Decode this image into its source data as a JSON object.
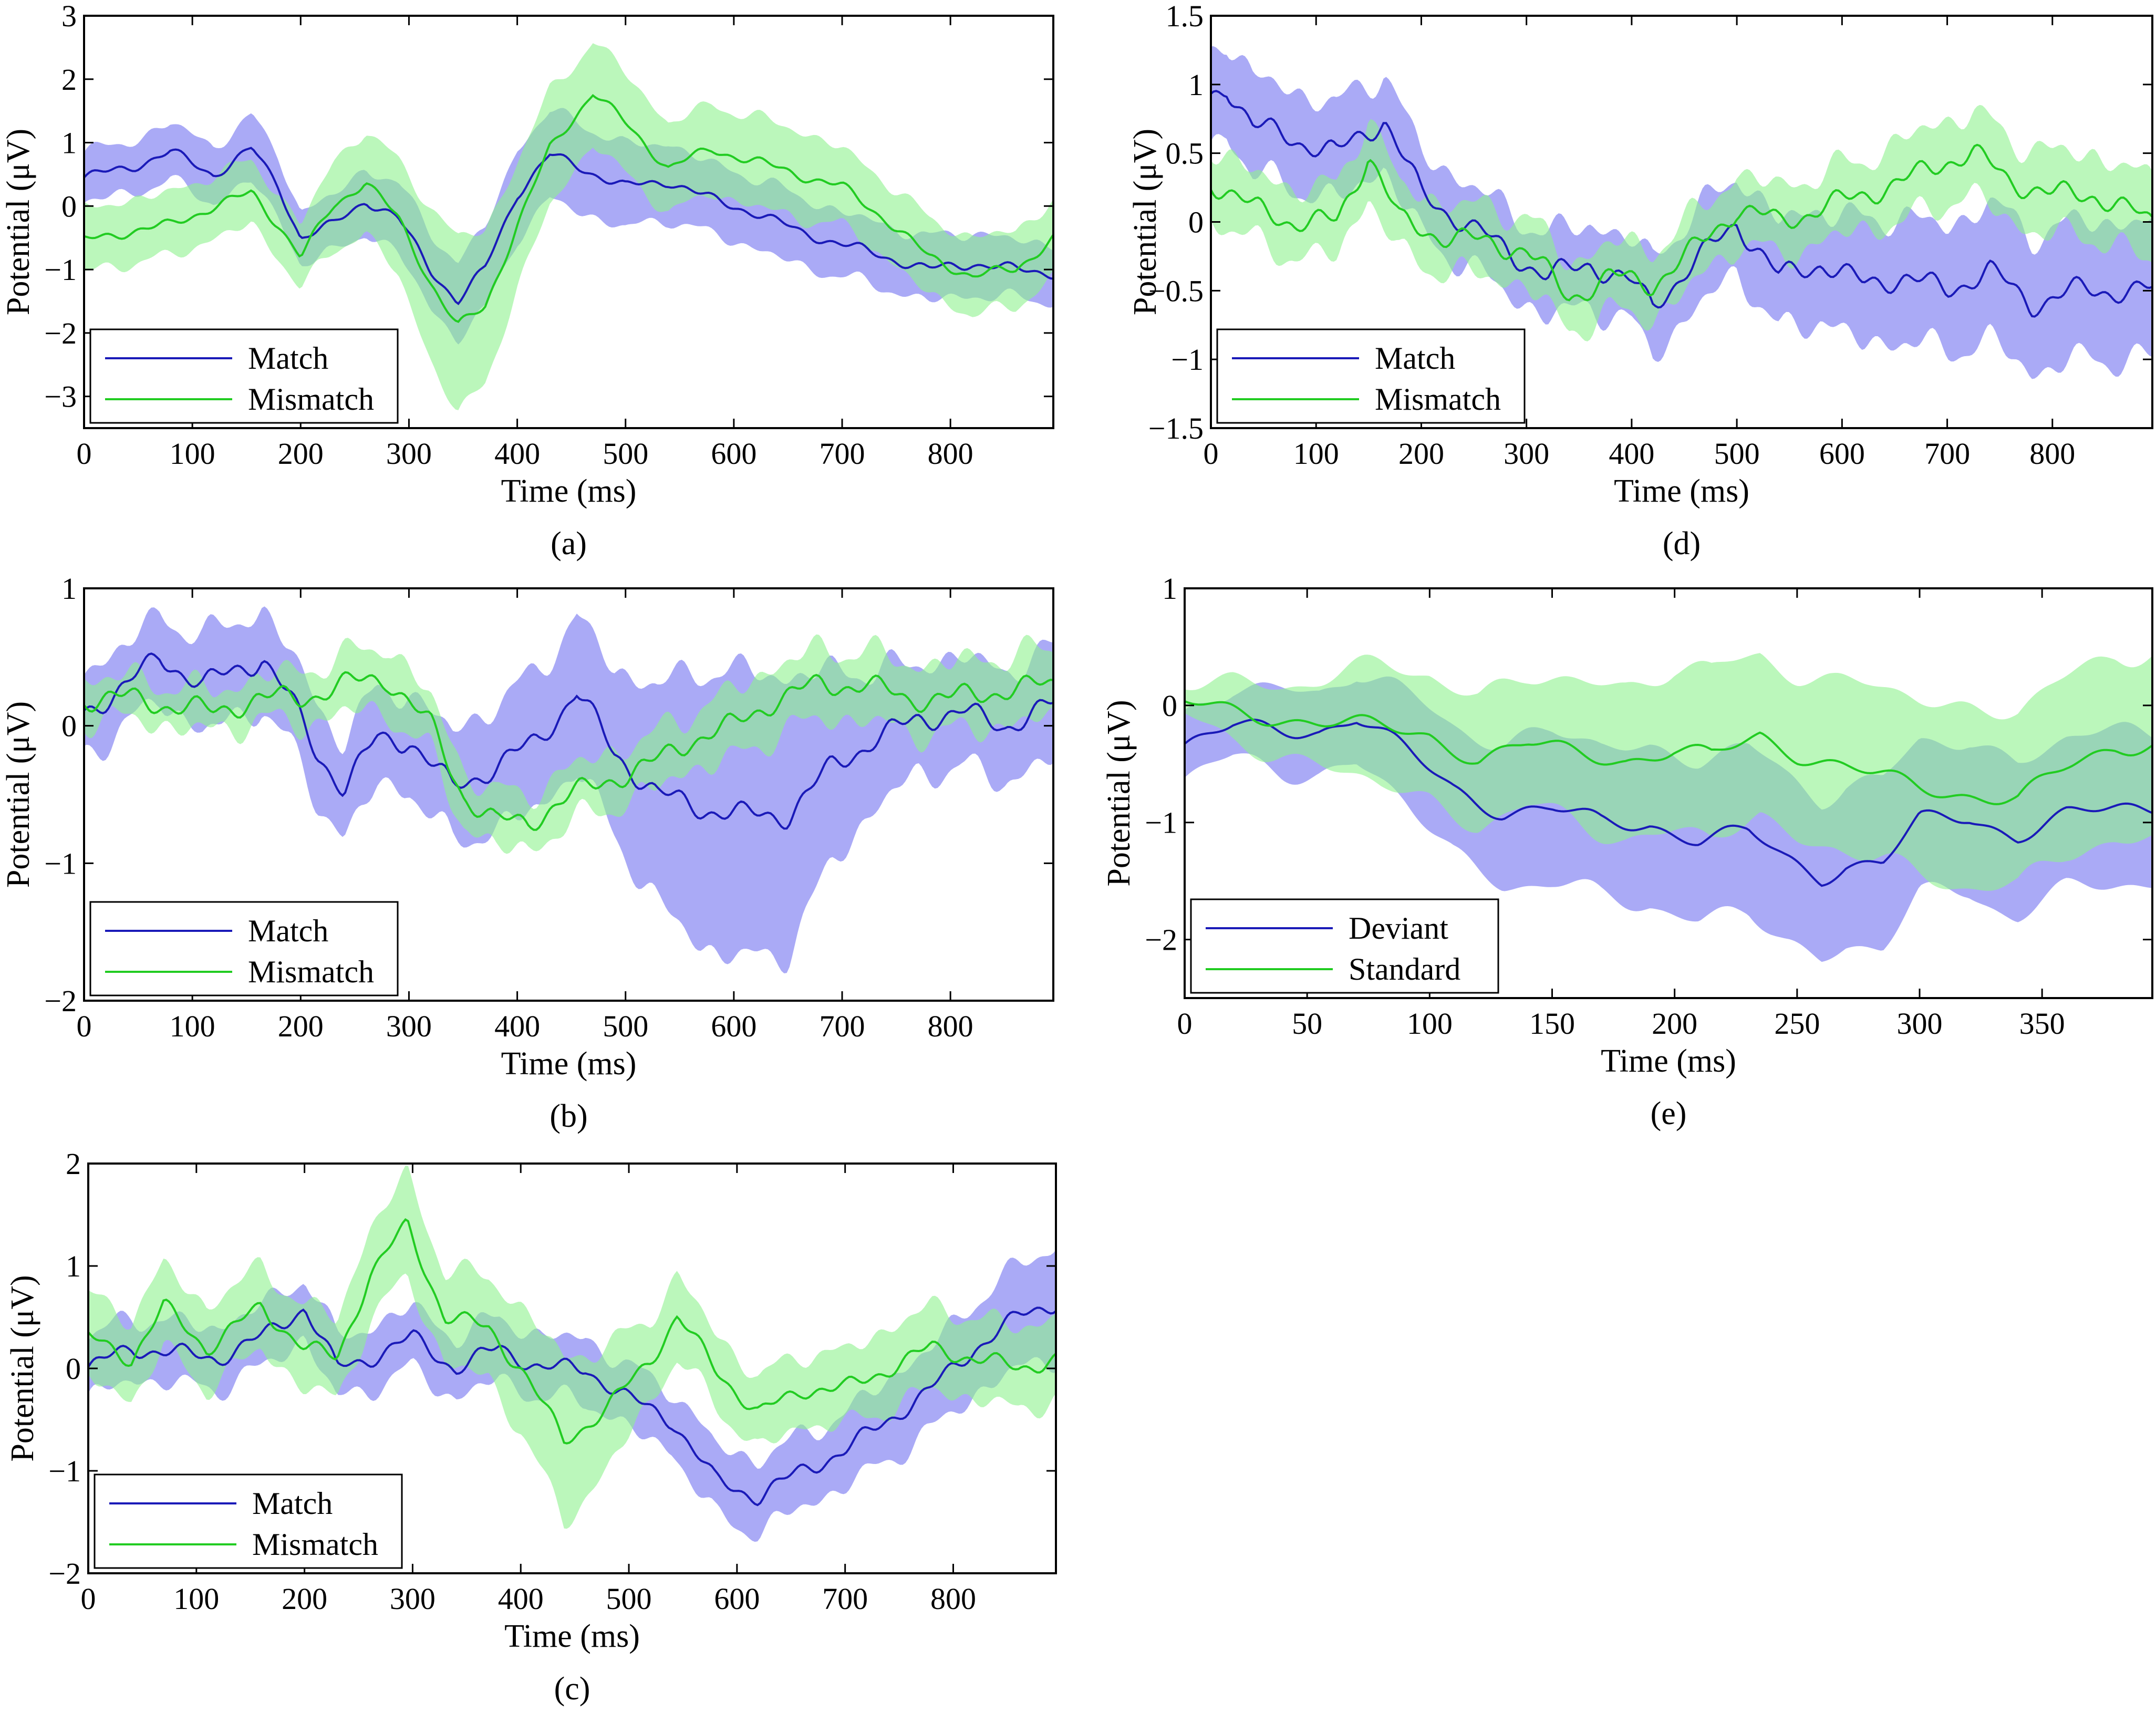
{
  "figure": {
    "colors": {
      "match_line": "#1a1ab8",
      "match_band": "#9b9bf5",
      "mismatch_line": "#22cc22",
      "mismatch_band": "#8df28d",
      "overlap_band": "#5aa89a"
    }
  },
  "chart_data": [
    {
      "id": "a",
      "type": "line",
      "panel_label": "(a)",
      "xlabel": "Time (ms)",
      "ylabel": "Potential (μV)",
      "xlim": [
        0,
        895
      ],
      "ylim": [
        -3.5,
        3
      ],
      "xticks": [
        0,
        100,
        200,
        300,
        400,
        500,
        600,
        700,
        800
      ],
      "yticks": [
        -3,
        -2,
        -1,
        0,
        1,
        2,
        3
      ],
      "legend_position": "bottom-left",
      "series": [
        {
          "name": "Match",
          "color": "#1a1ab8",
          "band": "#9b9bf5",
          "x": [
            0,
            40,
            80,
            120,
            155,
            180,
            200,
            230,
            260,
            290,
            320,
            345,
            370,
            400,
            430,
            460,
            500,
            540,
            580,
            620,
            660,
            700,
            740,
            780,
            820,
            860,
            895
          ],
          "y": [
            0.45,
            0.6,
            0.85,
            0.5,
            0.9,
            0.3,
            -0.5,
            -0.3,
            0.1,
            -0.2,
            -1.0,
            -1.5,
            -1.0,
            0.2,
            0.8,
            0.6,
            0.3,
            0.4,
            0.1,
            -0.1,
            -0.4,
            -0.6,
            -0.8,
            -1.0,
            -0.9,
            -1.0,
            -1.05
          ],
          "err": [
            0.4,
            0.4,
            0.45,
            0.45,
            0.5,
            0.5,
            0.4,
            0.45,
            0.5,
            0.55,
            0.6,
            0.6,
            0.65,
            0.7,
            0.7,
            0.7,
            0.65,
            0.6,
            0.55,
            0.55,
            0.55,
            0.5,
            0.5,
            0.5,
            0.5,
            0.45,
            0.45
          ]
        },
        {
          "name": "Mismatch",
          "color": "#22cc22",
          "band": "#8df28d",
          "x": [
            0,
            40,
            80,
            120,
            155,
            180,
            200,
            230,
            260,
            290,
            320,
            345,
            370,
            400,
            430,
            470,
            500,
            540,
            580,
            620,
            660,
            700,
            740,
            780,
            820,
            860,
            895
          ],
          "y": [
            -0.55,
            -0.4,
            -0.3,
            0.0,
            0.2,
            -0.3,
            -0.8,
            0.0,
            0.4,
            -0.2,
            -1.2,
            -1.9,
            -1.6,
            -0.3,
            0.9,
            1.8,
            1.3,
            0.6,
            0.9,
            0.7,
            0.5,
            0.3,
            -0.2,
            -0.8,
            -1.1,
            -1.0,
            -0.5
          ],
          "err": [
            0.5,
            0.5,
            0.5,
            0.5,
            0.5,
            0.5,
            0.5,
            0.7,
            0.8,
            0.9,
            1.2,
            1.4,
            1.2,
            1.0,
            0.9,
            0.8,
            0.8,
            0.7,
            0.7,
            0.7,
            0.7,
            0.6,
            0.6,
            0.6,
            0.6,
            0.6,
            0.6
          ]
        }
      ]
    },
    {
      "id": "b",
      "type": "line",
      "panel_label": "(b)",
      "xlabel": "Time (ms)",
      "ylabel": "Potential (μV)",
      "xlim": [
        0,
        895
      ],
      "ylim": [
        -2,
        1
      ],
      "xticks": [
        0,
        100,
        200,
        300,
        400,
        500,
        600,
        700,
        800
      ],
      "yticks": [
        -2,
        -1,
        0,
        1
      ],
      "legend_position": "bottom-left",
      "series": [
        {
          "name": "Match",
          "color": "#1a1ab8",
          "band": "#9b9bf5",
          "x": [
            0,
            40,
            70,
            110,
            140,
            165,
            190,
            215,
            240,
            270,
            300,
            340,
            380,
            420,
            455,
            490,
            530,
            570,
            610,
            650,
            690,
            730,
            770,
            810,
            850,
            895
          ],
          "y": [
            0.1,
            0.3,
            0.5,
            0.3,
            0.4,
            0.5,
            0.2,
            -0.2,
            -0.45,
            -0.1,
            -0.1,
            -0.45,
            -0.3,
            -0.1,
            0.25,
            -0.2,
            -0.5,
            -0.6,
            -0.65,
            -0.65,
            -0.3,
            -0.1,
            0.05,
            0.1,
            0.0,
            0.15
          ],
          "err": [
            0.3,
            0.3,
            0.3,
            0.35,
            0.35,
            0.35,
            0.35,
            0.35,
            0.35,
            0.35,
            0.35,
            0.4,
            0.45,
            0.5,
            0.55,
            0.6,
            0.8,
            1.0,
            1.05,
            1.0,
            0.7,
            0.5,
            0.4,
            0.4,
            0.4,
            0.4
          ]
        },
        {
          "name": "Mismatch",
          "color": "#22cc22",
          "band": "#8df28d",
          "x": [
            0,
            40,
            80,
            120,
            160,
            200,
            240,
            280,
            320,
            350,
            380,
            410,
            440,
            480,
            520,
            560,
            600,
            640,
            680,
            720,
            760,
            800,
            840,
            895
          ],
          "y": [
            0.2,
            0.2,
            0.15,
            0.1,
            0.2,
            0.2,
            0.3,
            0.35,
            0.0,
            -0.5,
            -0.7,
            -0.7,
            -0.55,
            -0.4,
            -0.3,
            -0.1,
            0.0,
            0.2,
            0.3,
            0.3,
            0.2,
            0.2,
            0.25,
            0.3
          ],
          "err": [
            0.15,
            0.15,
            0.15,
            0.15,
            0.15,
            0.2,
            0.2,
            0.25,
            0.2,
            0.2,
            0.2,
            0.2,
            0.2,
            0.2,
            0.2,
            0.2,
            0.25,
            0.25,
            0.25,
            0.25,
            0.25,
            0.25,
            0.25,
            0.25
          ]
        }
      ]
    },
    {
      "id": "c",
      "type": "line",
      "panel_label": "(c)",
      "xlabel": "Time (ms)",
      "ylabel": "Potential (μV)",
      "xlim": [
        0,
        895
      ],
      "ylim": [
        -2,
        2
      ],
      "xticks": [
        0,
        100,
        200,
        300,
        400,
        500,
        600,
        700,
        800
      ],
      "yticks": [
        -2,
        -1,
        0,
        1,
        2
      ],
      "legend_position": "bottom-left",
      "series": [
        {
          "name": "Match",
          "color": "#1a1ab8",
          "band": "#9b9bf5",
          "x": [
            0,
            40,
            80,
            120,
            160,
            200,
            230,
            260,
            300,
            340,
            380,
            420,
            460,
            500,
            540,
            580,
            620,
            660,
            700,
            740,
            780,
            820,
            860,
            895
          ],
          "y": [
            0.0,
            0.2,
            0.15,
            0.1,
            0.3,
            0.6,
            0.0,
            0.1,
            0.3,
            0.0,
            0.2,
            0.0,
            0.0,
            -0.3,
            -0.5,
            -1.1,
            -1.25,
            -1.0,
            -0.8,
            -0.5,
            -0.2,
            0.2,
            0.5,
            0.65
          ],
          "err": [
            0.3,
            0.3,
            0.3,
            0.3,
            0.3,
            0.3,
            0.3,
            0.3,
            0.3,
            0.3,
            0.3,
            0.3,
            0.3,
            0.3,
            0.3,
            0.35,
            0.35,
            0.35,
            0.35,
            0.4,
            0.4,
            0.45,
            0.5,
            0.55
          ]
        },
        {
          "name": "Mismatch",
          "color": "#22cc22",
          "band": "#8df28d",
          "x": [
            0,
            40,
            70,
            110,
            160,
            200,
            230,
            260,
            295,
            330,
            370,
            400,
            440,
            480,
            520,
            545,
            580,
            620,
            660,
            700,
            740,
            780,
            820,
            860,
            895
          ],
          "y": [
            0.3,
            0.1,
            0.6,
            0.2,
            0.6,
            0.2,
            0.1,
            0.9,
            1.4,
            0.5,
            0.4,
            0.0,
            -0.7,
            -0.4,
            0.1,
            0.5,
            0.0,
            -0.45,
            -0.2,
            -0.2,
            0.0,
            0.2,
            0.1,
            0.0,
            0.1
          ],
          "err": [
            0.4,
            0.4,
            0.4,
            0.4,
            0.4,
            0.4,
            0.4,
            0.45,
            0.5,
            0.45,
            0.5,
            0.6,
            0.8,
            0.6,
            0.4,
            0.4,
            0.35,
            0.35,
            0.35,
            0.35,
            0.4,
            0.4,
            0.4,
            0.4,
            0.4
          ]
        }
      ]
    },
    {
      "id": "d",
      "type": "line",
      "panel_label": "(d)",
      "xlabel": "Time (ms)",
      "ylabel": "Potential (μV)",
      "xlim": [
        0,
        895
      ],
      "ylim": [
        -1.5,
        1.5
      ],
      "xticks": [
        0,
        100,
        200,
        300,
        400,
        500,
        600,
        700,
        800
      ],
      "yticks": [
        -1.5,
        -1,
        -0.5,
        0,
        0.5,
        1,
        1.5
      ],
      "legend_position": "bottom-left",
      "series": [
        {
          "name": "Match",
          "color": "#1a1ab8",
          "band": "#9b9bf5",
          "x": [
            0,
            15,
            40,
            80,
            120,
            165,
            200,
            240,
            280,
            320,
            360,
            400,
            420,
            460,
            500,
            540,
            580,
            620,
            660,
            700,
            740,
            780,
            820,
            860,
            895
          ],
          "y": [
            0.9,
            1.0,
            0.7,
            0.6,
            0.5,
            0.75,
            0.2,
            0.0,
            -0.2,
            -0.4,
            -0.3,
            -0.45,
            -0.6,
            -0.3,
            0.0,
            -0.4,
            -0.3,
            -0.45,
            -0.4,
            -0.5,
            -0.35,
            -0.6,
            -0.5,
            -0.5,
            -0.5
          ],
          "err": [
            0.35,
            0.35,
            0.35,
            0.35,
            0.35,
            0.35,
            0.3,
            0.3,
            0.3,
            0.3,
            0.3,
            0.3,
            0.35,
            0.35,
            0.35,
            0.4,
            0.4,
            0.45,
            0.45,
            0.45,
            0.5,
            0.5,
            0.5,
            0.5,
            0.5
          ]
        },
        {
          "name": "Mismatch",
          "color": "#22cc22",
          "band": "#8df28d",
          "x": [
            0,
            40,
            80,
            120,
            150,
            180,
            220,
            260,
            300,
            340,
            380,
            420,
            460,
            500,
            540,
            580,
            620,
            660,
            700,
            725,
            760,
            800,
            840,
            895
          ],
          "y": [
            0.3,
            0.1,
            0.0,
            0.0,
            0.5,
            0.0,
            -0.1,
            -0.15,
            -0.2,
            -0.55,
            -0.4,
            -0.45,
            -0.2,
            0.1,
            0.0,
            0.1,
            0.2,
            0.3,
            0.45,
            0.5,
            0.3,
            0.2,
            0.2,
            0.0
          ],
          "err": [
            0.25,
            0.25,
            0.25,
            0.25,
            0.3,
            0.25,
            0.25,
            0.25,
            0.25,
            0.25,
            0.25,
            0.25,
            0.25,
            0.25,
            0.25,
            0.25,
            0.25,
            0.3,
            0.3,
            0.3,
            0.3,
            0.3,
            0.3,
            0.3
          ]
        }
      ]
    },
    {
      "id": "e",
      "type": "line",
      "panel_label": "(e)",
      "xlabel": "Time (ms)",
      "ylabel": "Potential (μV)",
      "xlim": [
        0,
        395
      ],
      "ylim": [
        -2.5,
        1
      ],
      "xticks": [
        0,
        50,
        100,
        150,
        200,
        250,
        300,
        350
      ],
      "yticks": [
        -2,
        -1,
        0,
        1
      ],
      "legend_position": "bottom-left",
      "series": [
        {
          "name": "Deviant",
          "color": "#1a1ab8",
          "band": "#9b9bf5",
          "x": [
            0,
            20,
            40,
            55,
            70,
            90,
            110,
            130,
            150,
            170,
            190,
            210,
            230,
            245,
            260,
            270,
            285,
            300,
            320,
            340,
            360,
            380,
            395
          ],
          "y": [
            -0.35,
            -0.2,
            -0.2,
            -0.2,
            -0.1,
            -0.4,
            -0.7,
            -0.9,
            -0.9,
            -1.0,
            -1.0,
            -1.15,
            -1.1,
            -1.3,
            -1.45,
            -1.35,
            -1.35,
            -1.0,
            -0.95,
            -1.1,
            -0.95,
            -0.9,
            -0.85
          ],
          "err": [
            0.25,
            0.3,
            0.35,
            0.35,
            0.4,
            0.45,
            0.55,
            0.6,
            0.65,
            0.65,
            0.65,
            0.7,
            0.7,
            0.7,
            0.7,
            0.7,
            0.7,
            0.65,
            0.65,
            0.65,
            0.65,
            0.65,
            0.65
          ]
        },
        {
          "name": "Standard",
          "color": "#22cc22",
          "band": "#8df28d",
          "x": [
            0,
            20,
            40,
            60,
            80,
            100,
            120,
            140,
            160,
            180,
            200,
            215,
            235,
            250,
            265,
            280,
            300,
            320,
            340,
            360,
            380,
            395
          ],
          "y": [
            0.0,
            -0.05,
            -0.1,
            -0.15,
            -0.2,
            -0.25,
            -0.45,
            -0.35,
            -0.4,
            -0.45,
            -0.4,
            -0.45,
            -0.25,
            -0.4,
            -0.5,
            -0.6,
            -0.7,
            -0.75,
            -0.8,
            -0.55,
            -0.35,
            -0.3
          ],
          "err": [
            0.15,
            0.25,
            0.3,
            0.4,
            0.5,
            0.55,
            0.55,
            0.55,
            0.6,
            0.65,
            0.7,
            0.7,
            0.7,
            0.7,
            0.7,
            0.75,
            0.75,
            0.75,
            0.75,
            0.75,
            0.8,
            0.8
          ]
        }
      ]
    }
  ]
}
